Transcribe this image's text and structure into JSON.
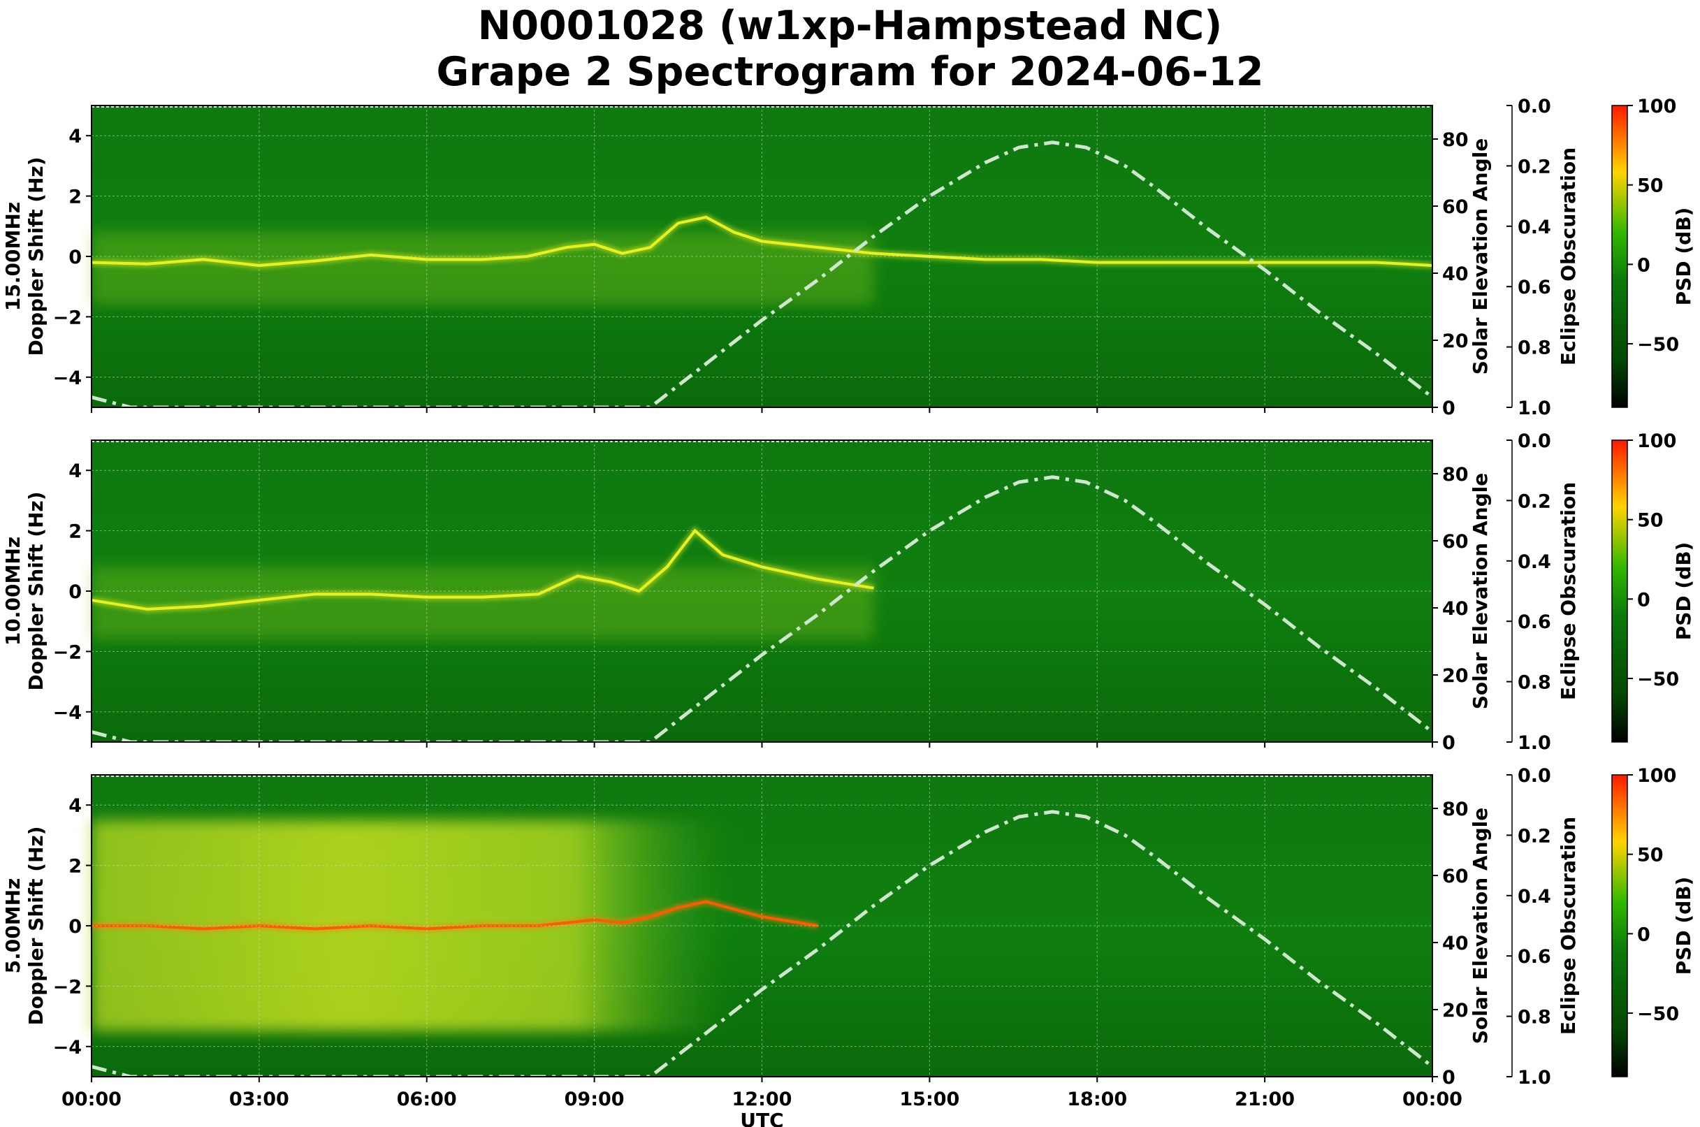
{
  "title": {
    "line1": "N0001028 (w1xp-Hampstead NC)",
    "line2": "Grape 2 Spectrogram for 2024-06-12"
  },
  "colors": {
    "background_green": "#0e7a0e",
    "signal_yellow": "#e8f020",
    "hot_red": "#ff2a00",
    "elevation_curve": "#cfe6cf",
    "grid": "#cfe6cf"
  },
  "chart_data": [
    {
      "type": "heatmap",
      "panel_label": "15.00MHz",
      "ylabel": "Doppler Shift (Hz)",
      "ylim": [
        -5,
        5
      ],
      "yticks": [
        "4",
        "2",
        "0",
        "−2",
        "−4"
      ],
      "right_axis_1": {
        "label": "Solar Elevation Angle",
        "ylim": [
          0,
          90
        ],
        "ticks": [
          "80",
          "60",
          "40",
          "20",
          "0"
        ]
      },
      "right_axis_2": {
        "label": "Eclipse Obscuration",
        "ylim": [
          1.0,
          0.0
        ],
        "ticks": [
          "0.0",
          "0.2",
          "0.4",
          "0.6",
          "0.8",
          "1.0"
        ]
      },
      "colorbar": {
        "label": "PSD (dB)",
        "range": [
          -90,
          100
        ],
        "ticks": [
          "100",
          "50",
          "0",
          "−50"
        ]
      },
      "grid": true,
      "doppler_trace": {
        "x_hours": [
          0,
          1,
          2,
          3,
          4,
          5,
          6,
          7,
          7.8,
          8.5,
          9,
          9.5,
          10,
          10.5,
          11,
          11.5,
          12,
          13,
          14,
          15,
          16,
          17,
          18,
          19,
          20,
          21,
          22,
          23,
          24
        ],
        "y_hz": [
          -0.2,
          -0.25,
          -0.1,
          -0.3,
          -0.15,
          0.05,
          -0.1,
          -0.1,
          0.0,
          0.3,
          0.4,
          0.1,
          0.3,
          1.1,
          1.3,
          0.8,
          0.5,
          0.3,
          0.1,
          0.0,
          -0.1,
          -0.1,
          -0.2,
          -0.2,
          -0.2,
          -0.2,
          -0.2,
          -0.2,
          -0.3
        ]
      },
      "solar_elevation": {
        "x_hours": [
          0,
          0.7,
          10,
          11,
          12,
          13,
          14,
          15,
          16,
          16.6,
          17.2,
          17.8,
          18.5,
          19,
          20,
          21,
          22,
          23,
          24
        ],
        "y_deg": [
          3,
          0,
          0,
          13,
          26,
          38,
          51,
          63,
          73,
          77.5,
          79,
          77.5,
          72,
          66,
          53,
          41,
          28,
          16,
          3
        ]
      }
    },
    {
      "type": "heatmap",
      "panel_label": "10.00MHz",
      "ylabel": "Doppler Shift (Hz)",
      "ylim": [
        -5,
        5
      ],
      "yticks": [
        "4",
        "2",
        "0",
        "−2",
        "−4"
      ],
      "right_axis_1": {
        "label": "Solar Elevation Angle",
        "ylim": [
          0,
          90
        ],
        "ticks": [
          "80",
          "60",
          "40",
          "20",
          "0"
        ]
      },
      "right_axis_2": {
        "label": "Eclipse Obscuration",
        "ylim": [
          1.0,
          0.0
        ],
        "ticks": [
          "0.0",
          "0.2",
          "0.4",
          "0.6",
          "0.8",
          "1.0"
        ]
      },
      "colorbar": {
        "label": "PSD (dB)",
        "range": [
          -90,
          100
        ],
        "ticks": [
          "100",
          "50",
          "0",
          "−50"
        ]
      },
      "grid": true,
      "doppler_trace": {
        "x_hours": [
          0,
          1,
          2,
          3,
          4,
          5,
          6,
          7,
          8,
          8.7,
          9.3,
          9.8,
          10.3,
          10.8,
          11.3,
          12,
          13,
          14
        ],
        "y_hz": [
          -0.3,
          -0.6,
          -0.5,
          -0.3,
          -0.1,
          -0.1,
          -0.2,
          -0.2,
          -0.1,
          0.5,
          0.3,
          0.0,
          0.8,
          2.0,
          1.2,
          0.8,
          0.4,
          0.1
        ]
      },
      "solar_elevation": {
        "x_hours": [
          0,
          0.7,
          10,
          11,
          12,
          13,
          14,
          15,
          16,
          16.6,
          17.2,
          17.8,
          18.5,
          19,
          20,
          21,
          22,
          23,
          24
        ],
        "y_deg": [
          3,
          0,
          0,
          13,
          26,
          38,
          51,
          63,
          73,
          77.5,
          79,
          77.5,
          72,
          66,
          53,
          41,
          28,
          16,
          3
        ]
      }
    },
    {
      "type": "heatmap",
      "panel_label": "5.00MHz",
      "ylabel": "Doppler Shift (Hz)",
      "xlabel": "UTC",
      "xticks": [
        "00:00",
        "03:00",
        "06:00",
        "09:00",
        "12:00",
        "15:00",
        "18:00",
        "21:00",
        "00:00"
      ],
      "ylim": [
        -5,
        5
      ],
      "yticks": [
        "4",
        "2",
        "0",
        "−2",
        "−4"
      ],
      "right_axis_1": {
        "label": "Solar Elevation Angle",
        "ylim": [
          0,
          90
        ],
        "ticks": [
          "80",
          "60",
          "40",
          "20",
          "0"
        ]
      },
      "right_axis_2": {
        "label": "Eclipse Obscuration",
        "ylim": [
          1.0,
          0.0
        ],
        "ticks": [
          "0.0",
          "0.2",
          "0.4",
          "0.6",
          "0.8",
          "1.0"
        ]
      },
      "colorbar": {
        "label": "PSD (dB)",
        "range": [
          -90,
          100
        ],
        "ticks": [
          "100",
          "50",
          "0",
          "−50"
        ]
      },
      "grid": true,
      "doppler_trace": {
        "x_hours": [
          0,
          1,
          2,
          3,
          4,
          5,
          6,
          7,
          8,
          9,
          9.5,
          10,
          10.5,
          11,
          12,
          13
        ],
        "y_hz": [
          0.0,
          0.0,
          -0.1,
          0.0,
          -0.1,
          0.0,
          -0.1,
          0.0,
          0.0,
          0.2,
          0.1,
          0.3,
          0.6,
          0.8,
          0.3,
          0.0
        ]
      },
      "solar_elevation": {
        "x_hours": [
          0,
          0.7,
          10,
          11,
          12,
          13,
          14,
          15,
          16,
          16.6,
          17.2,
          17.8,
          18.5,
          19,
          20,
          21,
          22,
          23,
          24
        ],
        "y_deg": [
          3,
          0,
          0,
          13,
          26,
          38,
          51,
          63,
          73,
          77.5,
          79,
          77.5,
          72,
          66,
          53,
          41,
          28,
          16,
          3
        ]
      }
    }
  ]
}
